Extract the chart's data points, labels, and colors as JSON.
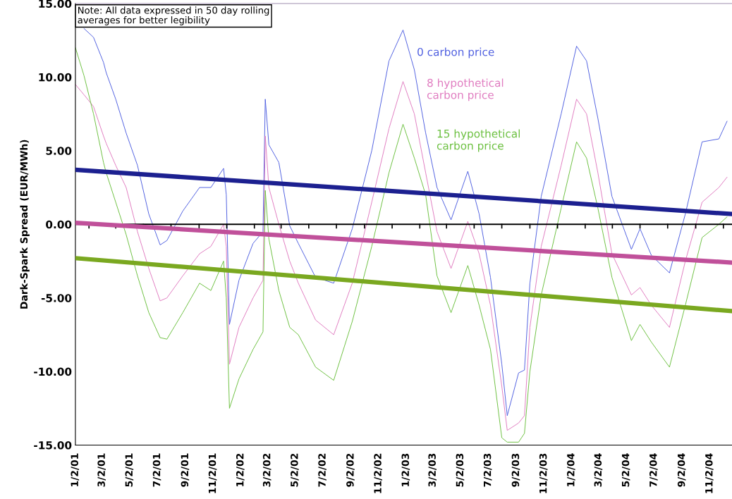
{
  "chart_data": {
    "type": "line",
    "ylabel": "Dark-Spark Spread (EUR/MWh)",
    "annotations": [
      "Note: All data expressed in 50 day rolling\naverages for better legibility"
    ],
    "x": [
      "2001-01-02",
      "2001-01-21",
      "2001-02-11",
      "2001-03-05",
      "2001-03-11",
      "2001-04-01",
      "2001-04-24",
      "2001-05-19",
      "2001-06-13",
      "2001-07-08",
      "2001-07-23",
      "2001-08-27",
      "2001-10-03",
      "2001-10-28",
      "2001-11-25",
      "2001-12-01",
      "2001-12-08",
      "2001-12-29",
      "2002-01-29",
      "2002-02-20",
      "2002-02-25",
      "2002-03-05",
      "2002-03-27",
      "2002-04-20",
      "2002-05-09",
      "2002-06-16",
      "2002-07-26",
      "2002-09-05",
      "2002-10-18",
      "2002-11-25",
      "2002-12-26",
      "2003-01-20",
      "2003-02-14",
      "2003-03-11",
      "2003-04-11",
      "2003-05-18",
      "2003-06-12",
      "2003-07-07",
      "2003-08-01",
      "2003-08-13",
      "2003-09-07",
      "2003-09-20",
      "2003-10-02",
      "2003-10-27",
      "2003-12-10",
      "2004-01-13",
      "2004-02-04",
      "2004-02-29",
      "2004-03-31",
      "2004-05-13",
      "2004-06-01",
      "2004-06-26",
      "2004-08-05",
      "2004-09-09",
      "2004-10-16",
      "2004-11-22",
      "2004-12-10"
    ],
    "series": [
      {
        "name": "0 carbon price",
        "color": "#5060e0",
        "values": [
          null,
          13.3,
          12.7,
          11.0,
          10.3,
          8.5,
          6.2,
          4.0,
          0.7,
          -1.4,
          -1.1,
          0.9,
          2.5,
          2.5,
          3.8,
          2.0,
          -6.8,
          -3.8,
          -1.3,
          -0.5,
          8.5,
          5.4,
          4.2,
          -0.1,
          -1.3,
          -3.6,
          -4.0,
          -0.3,
          5.0,
          11.1,
          13.2,
          10.5,
          6.2,
          2.5,
          0.3,
          3.6,
          0.7,
          -3.6,
          -9.5,
          -13.0,
          -10.1,
          -9.9,
          -4.0,
          1.9,
          7.5,
          12.1,
          11.1,
          7.2,
          1.9,
          -1.7,
          -0.3,
          -2.1,
          -3.3,
          0.7,
          5.6,
          5.8,
          7.0
        ]
      },
      {
        "name": "8 hypothetical\ncarbon price",
        "color": "#e07cc0",
        "values": [
          9.5,
          8.8,
          8.0,
          6.0,
          5.5,
          4.0,
          2.5,
          -0.5,
          -3.0,
          -5.2,
          -5.0,
          -3.5,
          -2.0,
          -1.5,
          0.0,
          -1.5,
          -9.5,
          -7.0,
          -5.0,
          -3.8,
          6.0,
          2.5,
          0.0,
          -2.5,
          -4.0,
          -6.5,
          -7.5,
          -4.0,
          1.5,
          6.5,
          9.7,
          7.5,
          3.5,
          -0.5,
          -3.0,
          0.2,
          -2.0,
          -5.5,
          -11.0,
          -14.0,
          -13.5,
          -13.0,
          -7.0,
          -1.5,
          4.0,
          8.5,
          7.5,
          3.5,
          -2.0,
          -4.8,
          -4.3,
          -5.5,
          -7.0,
          -2.5,
          1.5,
          2.5,
          3.2
        ]
      },
      {
        "name": "15 hypothetical\ncarbon price",
        "color": "#6cc040",
        "values": [
          12.0,
          10.1,
          7.5,
          4.2,
          3.5,
          1.5,
          -0.7,
          -3.5,
          -6.0,
          -7.7,
          -7.8,
          -6.0,
          -4.0,
          -4.5,
          -2.5,
          -5.0,
          -12.5,
          -10.5,
          -8.5,
          -7.3,
          2.3,
          -1.0,
          -4.5,
          -7.0,
          -7.5,
          -9.7,
          -10.6,
          -6.6,
          -1.5,
          3.5,
          6.8,
          4.5,
          2.0,
          -3.5,
          -6.0,
          -2.8,
          -5.5,
          -8.5,
          -14.5,
          -14.8,
          -14.8,
          -14.2,
          -10.0,
          -4.8,
          1.1,
          5.6,
          4.5,
          1.1,
          -3.6,
          -7.9,
          -6.8,
          -8.0,
          -9.7,
          -5.5,
          -0.9,
          0.0,
          0.5
        ]
      },
      {
        "color": "#1c2090",
        "x": [
          "2001-01-02",
          "2004-12-21"
        ],
        "values": [
          3.7,
          0.7
        ]
      },
      {
        "color": "#c0509a",
        "x": [
          "2001-01-02",
          "2004-12-21"
        ],
        "values": [
          0.1,
          -2.6
        ]
      },
      {
        "color": "#7aa820",
        "x": [
          "2001-01-02",
          "2004-12-21"
        ],
        "values": [
          -2.3,
          -5.9
        ]
      }
    ],
    "ref_lines": [
      {
        "axis": "y",
        "value": 0,
        "color": "#000000"
      }
    ],
    "xlim": [
      "2001-01-02",
      "2004-12-21"
    ],
    "xticks": [
      {
        "value": "2001-01-02",
        "label": "1/2/01"
      },
      {
        "value": "2001-03-02",
        "label": "3/2/01"
      },
      {
        "value": "2001-05-02",
        "label": "5/2/01"
      },
      {
        "value": "2001-07-02",
        "label": "7/2/01"
      },
      {
        "value": "2001-09-02",
        "label": "9/2/01"
      },
      {
        "value": "2001-11-02",
        "label": "11/2/01"
      },
      {
        "value": "2002-01-02",
        "label": "1/2/02"
      },
      {
        "value": "2002-03-02",
        "label": "3/2/02"
      },
      {
        "value": "2002-05-02",
        "label": "5/2/02"
      },
      {
        "value": "2002-07-02",
        "label": "7/2/02"
      },
      {
        "value": "2002-09-02",
        "label": "9/2/02"
      },
      {
        "value": "2002-11-02",
        "label": "11/2/02"
      },
      {
        "value": "2003-01-02",
        "label": "1/2/03"
      },
      {
        "value": "2003-03-02",
        "label": "3/2/03"
      },
      {
        "value": "2003-05-02",
        "label": "5/2/03"
      },
      {
        "value": "2003-07-02",
        "label": "7/2/03"
      },
      {
        "value": "2003-09-02",
        "label": "9/2/03"
      },
      {
        "value": "2003-11-02",
        "label": "11/2/03"
      },
      {
        "value": "2004-01-02",
        "label": "1/2/04"
      },
      {
        "value": "2004-03-02",
        "label": "3/2/04"
      },
      {
        "value": "2004-05-02",
        "label": "5/2/04"
      },
      {
        "value": "2004-07-02",
        "label": "7/2/04"
      },
      {
        "value": "2004-09-02",
        "label": "9/2/04"
      },
      {
        "value": "2004-11-02",
        "label": "11/2/04"
      }
    ],
    "ylim": [
      -15,
      15
    ],
    "yticks": [
      {
        "value": -15,
        "label": "-15.00"
      },
      {
        "value": -10,
        "label": "-10.00"
      },
      {
        "value": -5,
        "label": "-5.00"
      },
      {
        "value": 0,
        "label": "0.00"
      },
      {
        "value": 5,
        "label": "5.00"
      },
      {
        "value": 10,
        "label": "10.00"
      },
      {
        "value": 15,
        "label": "15.00"
      }
    ],
    "grid": false,
    "marker": "none",
    "line_style": "solid"
  }
}
